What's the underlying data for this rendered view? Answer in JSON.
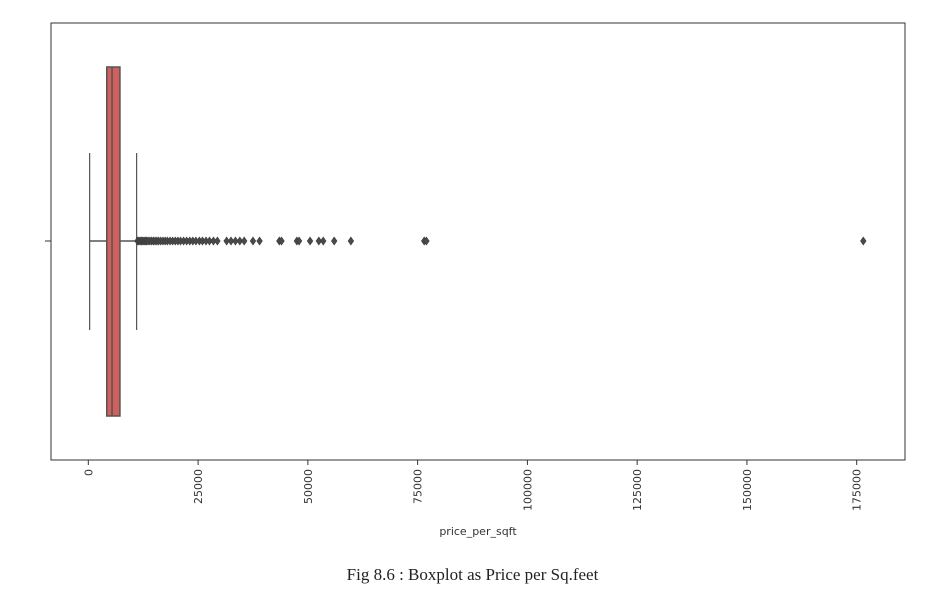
{
  "chart_data": {
    "type": "boxplot",
    "orientation": "horizontal",
    "title": "",
    "xlabel": "price_per_sqft",
    "ylabel": "",
    "xlim": [
      -8500,
      186000
    ],
    "grid": false,
    "xticks": [
      {
        "value": 0,
        "label": "0"
      },
      {
        "value": 25000,
        "label": "25000"
      },
      {
        "value": 50000,
        "label": "50000"
      },
      {
        "value": 75000,
        "label": "75000"
      },
      {
        "value": 100000,
        "label": "100000"
      },
      {
        "value": 125000,
        "label": "125000"
      },
      {
        "value": 150000,
        "label": "150000"
      },
      {
        "value": 175000,
        "label": "175000"
      }
    ],
    "box": {
      "whisker_low": 300,
      "q1": 4200,
      "median": 5400,
      "q3": 7200,
      "whisker_high": 11000,
      "fill": "#d0605e",
      "line": "#555555"
    },
    "outliers": [
      11200,
      11500,
      11800,
      12100,
      12400,
      12700,
      13000,
      13300,
      13600,
      14000,
      14400,
      14800,
      15200,
      15600,
      16000,
      16500,
      17000,
      17500,
      18000,
      18600,
      19200,
      19800,
      20400,
      21000,
      21700,
      22400,
      23100,
      23800,
      24500,
      25300,
      26000,
      26800,
      27600,
      28500,
      29400,
      31500,
      32500,
      33500,
      34500,
      35500,
      37500,
      39000,
      43500,
      44000,
      47500,
      48000,
      50500,
      52500,
      53500,
      56000,
      59800,
      76500,
      77000,
      176500
    ]
  },
  "caption": "Fig 8.6 : Boxplot as Price per Sq.feet"
}
